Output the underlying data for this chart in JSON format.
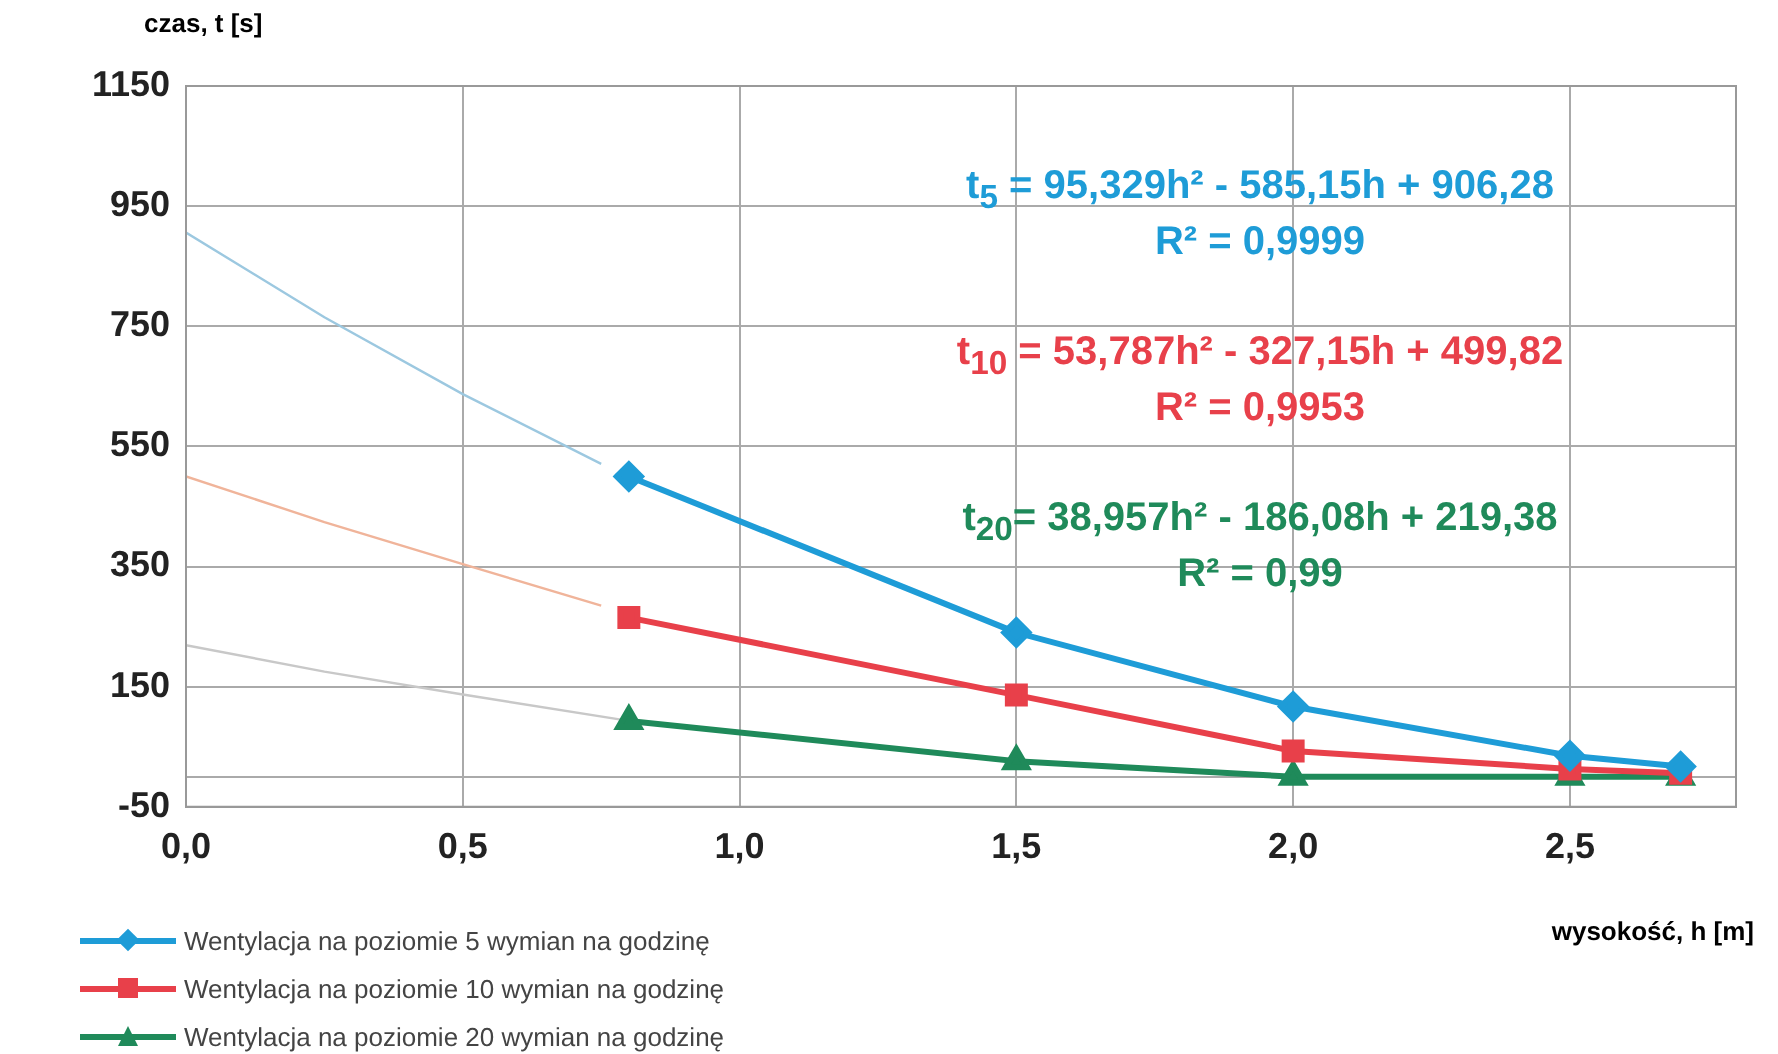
{
  "chart_data": {
    "type": "line",
    "xlabel": "wysokość, h [m]",
    "ylabel": "czas, t [s]",
    "xlim": [
      0,
      2.8
    ],
    "xticks": [
      {
        "value": 0,
        "label": "0,0"
      },
      {
        "value": 0.5,
        "label": "0,5"
      },
      {
        "value": 1,
        "label": "1,0"
      },
      {
        "value": 1.5,
        "label": "1,5"
      },
      {
        "value": 2,
        "label": "2,0"
      },
      {
        "value": 2.5,
        "label": "2,5"
      }
    ],
    "ylim": [
      -50,
      1150
    ],
    "yticks": [
      -50,
      {
        "value": 0,
        "label": null
      },
      150,
      350,
      550,
      750,
      950,
      1150
    ],
    "grid": true,
    "legend": "bottom left",
    "series": [
      {
        "name": "Wentylacja na poziomie 5 wymian na godzinę",
        "color": "#1e9cd7",
        "marker": "diamond",
        "x": [
          0.8,
          1.5,
          2,
          2.5,
          2.7
        ],
        "values": [
          500,
          240,
          117,
          35,
          17
        ]
      },
      {
        "name": "Wentylacja na poziomie 10 wymian na godzinę",
        "color": "#e8404a",
        "marker": "square",
        "x": [
          0.8,
          1.5,
          2,
          2.5,
          2.7
        ],
        "values": [
          265,
          136,
          43,
          13,
          6
        ]
      },
      {
        "name": "Wentylacja na poziomie 20 wymian na godzinę",
        "color": "#1f8a5a",
        "marker": "triangle",
        "x": [
          0.8,
          1.5,
          2,
          2.5,
          2.7
        ],
        "values": [
          93,
          26,
          0,
          0,
          0
        ]
      },
      {
        "color": "#9cc8e0",
        "marker": "none",
        "x": [
          0,
          0.25,
          0.5,
          0.75
        ],
        "values": [
          906,
          765,
          637,
          521
        ]
      },
      {
        "color": "#f0b49a",
        "marker": "none",
        "x": [
          0,
          0.25,
          0.5,
          0.75
        ],
        "values": [
          500,
          424,
          354,
          285
        ]
      },
      {
        "color": "#c8c8c8",
        "marker": "none",
        "x": [
          0,
          0.25,
          0.5,
          0.8
        ],
        "values": [
          219,
          175,
          137,
          93
        ]
      }
    ],
    "annotations": [
      "t$_{5}$ = 95,329h² - 585,15h + 906,28",
      "R² = 0,9999",
      "t$_{10}$ = 53,787h² - 327,15h + 499,82",
      "R² = 0,9953",
      "t$_{20}$= 38,957h² - 186,08h + 219,38",
      "R² = 0,99"
    ]
  }
}
